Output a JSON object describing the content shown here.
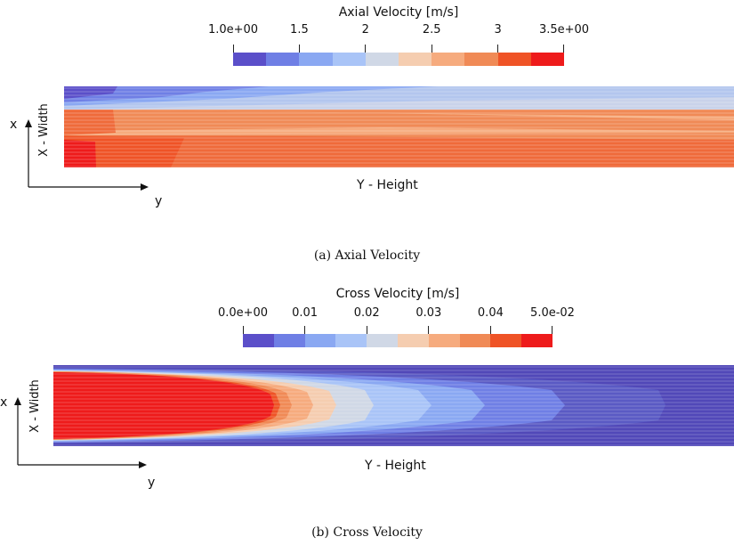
{
  "panels": [
    {
      "colorbar_title": "Axial Velocity [m/s]",
      "ticks": [
        "1.0e+00",
        "1.5",
        "2",
        "2.5",
        "3",
        "3.5e+00"
      ],
      "colors": [
        "#5b4fc9",
        "#6f7fe5",
        "#8aa8f2",
        "#a9c4f7",
        "#d0d8e6",
        "#f5cdb0",
        "#f6ab7e",
        "#f08a56",
        "#ef5326",
        "#ee1b1b"
      ],
      "axis_x": "x",
      "axis_y": "y",
      "x_width_label": "X - Width",
      "y_height_label": "Y - Height",
      "caption": "(a) Axial Velocity"
    },
    {
      "colorbar_title": "Cross Velocity [m/s]",
      "ticks": [
        "0.0e+00",
        "0.01",
        "0.02",
        "0.03",
        "0.04",
        "5.0e-02"
      ],
      "colors": [
        "#5b4fc9",
        "#6f7fe5",
        "#8aa8f2",
        "#a9c4f7",
        "#d0d8e6",
        "#f5cdb0",
        "#f6ab7e",
        "#f08a56",
        "#ef5326",
        "#ee1b1b"
      ],
      "axis_x": "x",
      "axis_y": "y",
      "x_width_label": "X - Width",
      "y_height_label": "Y - Height",
      "caption": "(b) Cross Velocity"
    }
  ]
}
